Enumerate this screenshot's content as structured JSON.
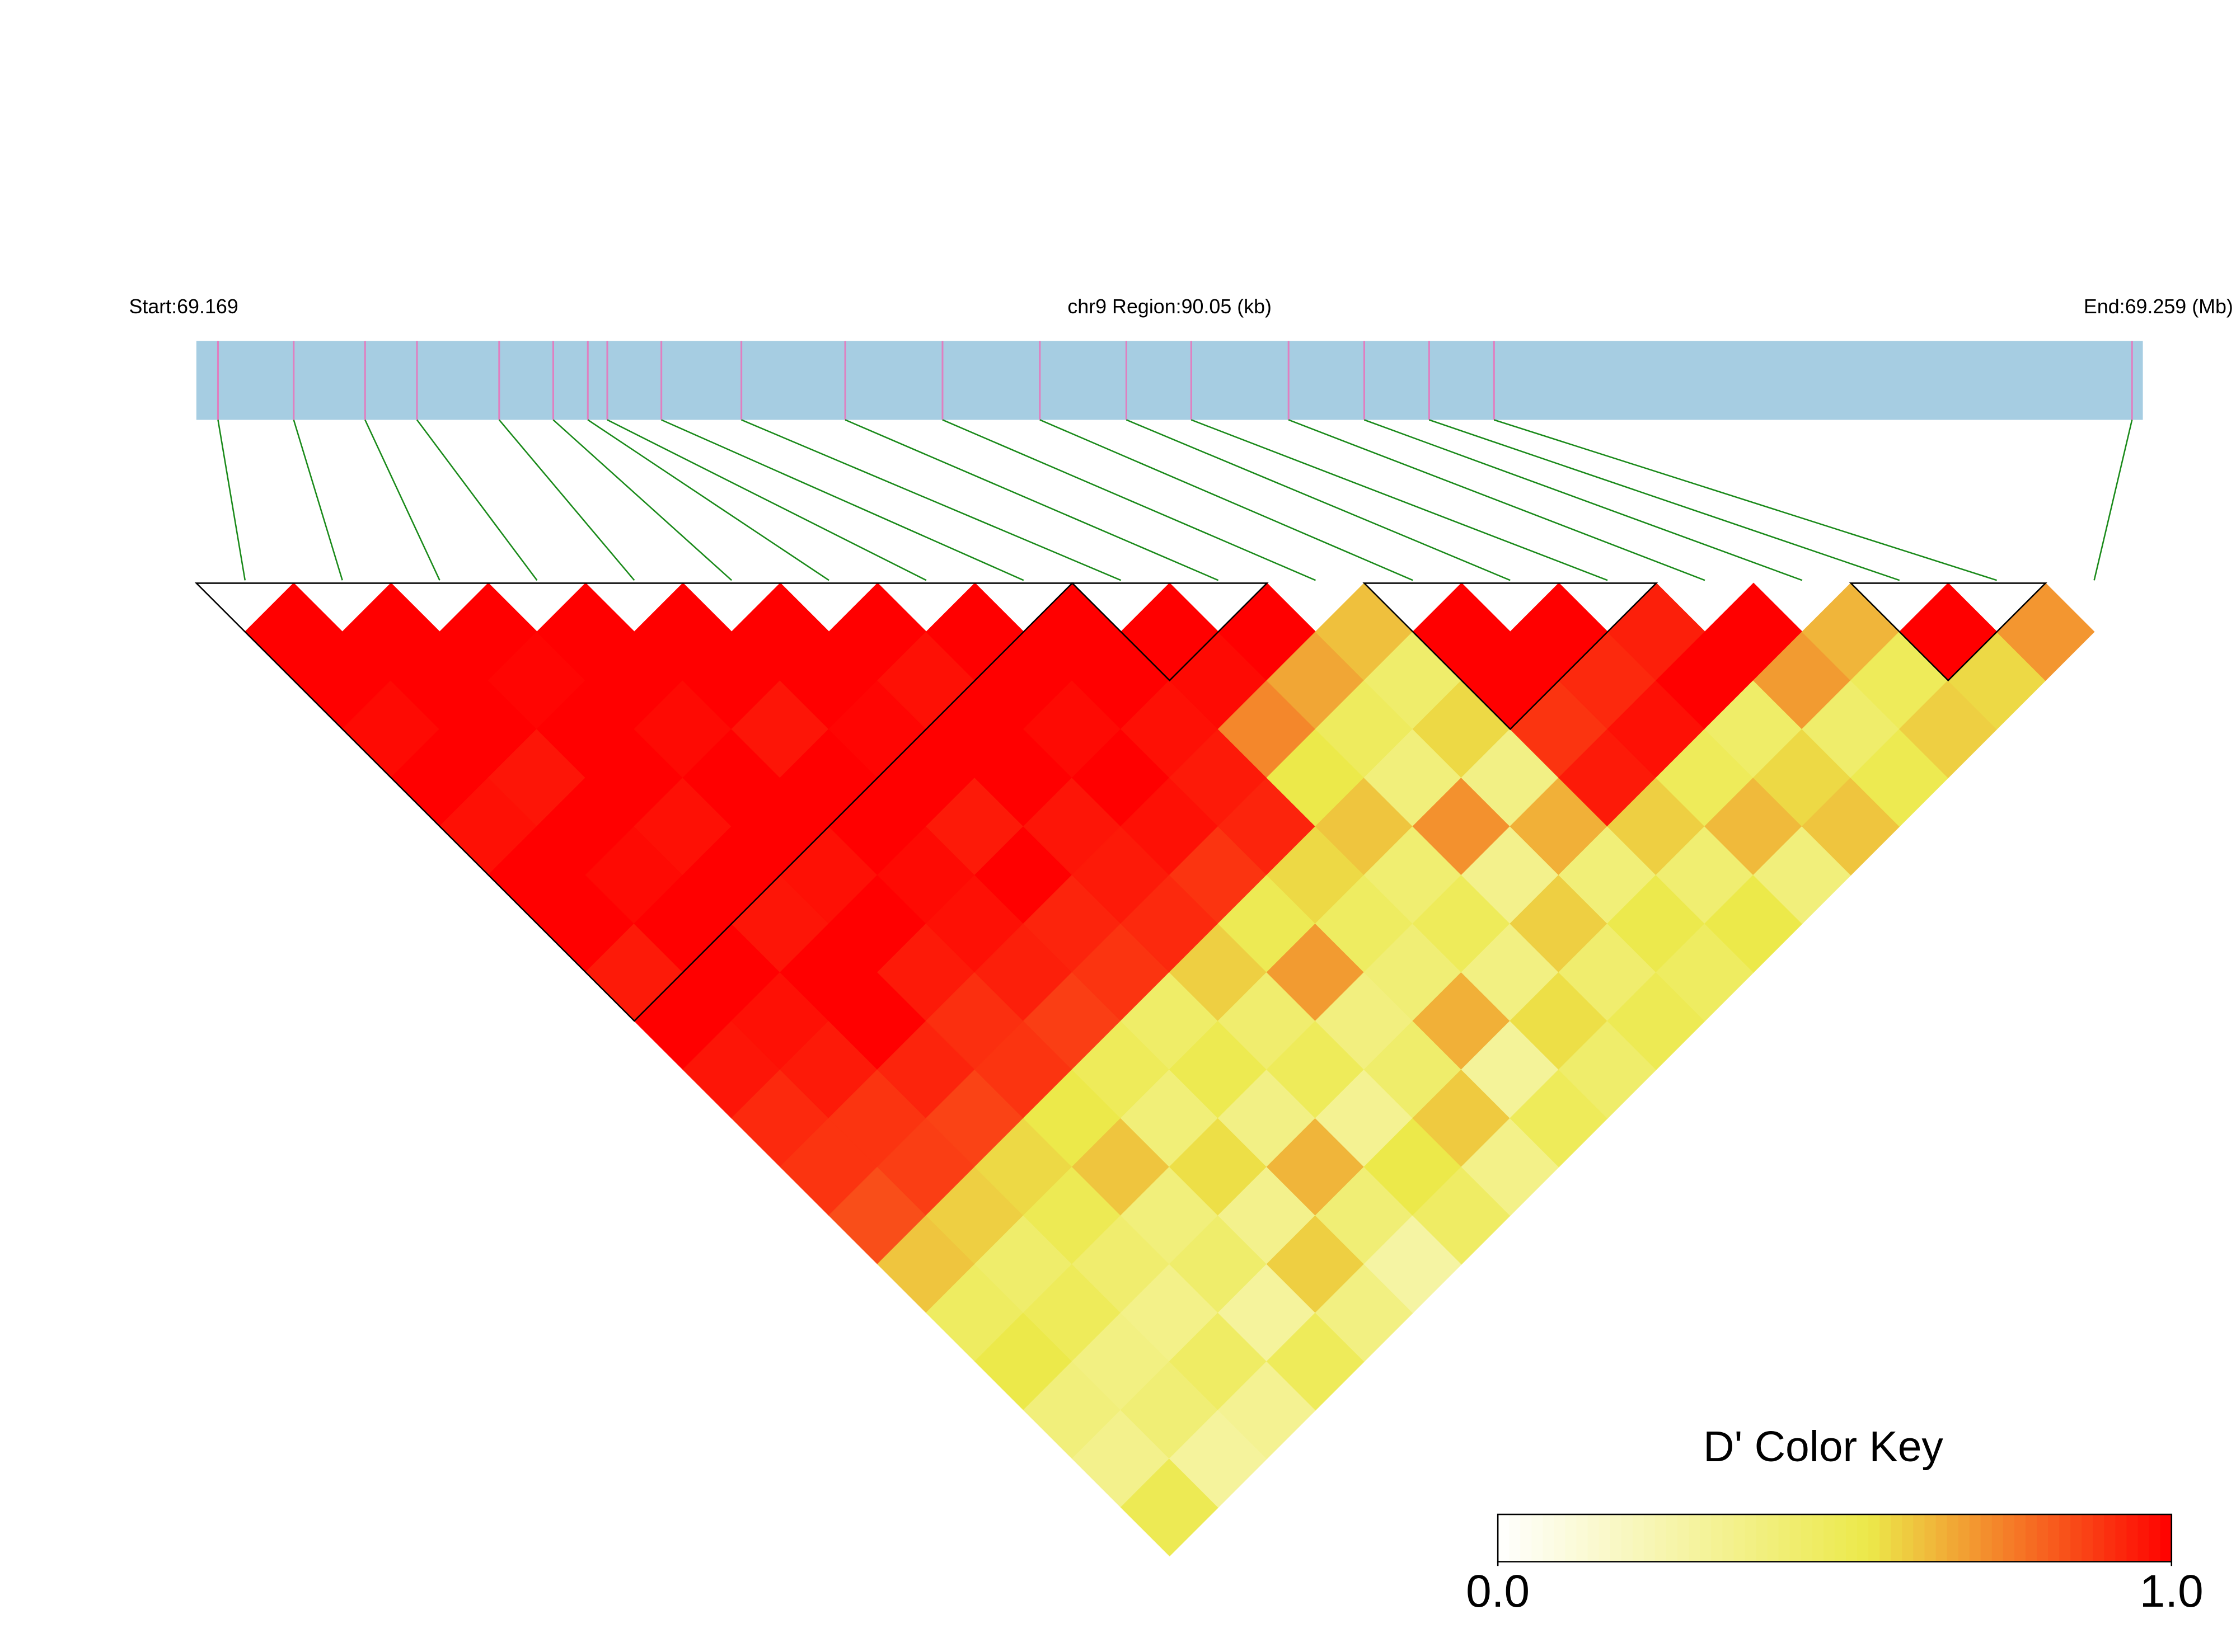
{
  "chart_data": {
    "type": "ld-heatmap",
    "start_label": "Start:69.169",
    "region_label": "chr9 Region:90.05 (kb)",
    "end_label": "End:69.259 (Mb)",
    "xlim": [
      69.169,
      69.259
    ],
    "snp_positions": [
      69.17,
      69.1735,
      69.1768,
      69.1792,
      69.183,
      69.1855,
      69.1871,
      69.188,
      69.1905,
      69.1942,
      69.199,
      69.2035,
      69.208,
      69.212,
      69.215,
      69.2195,
      69.223,
      69.226,
      69.229,
      69.2585
    ],
    "ld": [
      [
        1,
        1,
        0.98,
        1,
        0.97,
        1,
        1,
        0.95,
        1,
        0.96,
        0.92,
        0.9,
        0.85,
        0.62,
        0.48,
        0.55,
        0.4,
        0.35,
        0.52
      ],
      [
        1,
        1,
        1,
        0.96,
        1,
        0.98,
        1,
        1,
        0.97,
        0.95,
        0.9,
        0.88,
        0.6,
        0.45,
        0.5,
        0.38,
        0.42,
        0.3
      ],
      [
        1,
        0.99,
        1,
        1,
        0.97,
        1,
        0.96,
        1,
        1,
        0.93,
        0.87,
        0.58,
        0.52,
        0.44,
        0.36,
        0.47,
        0.33
      ],
      [
        1,
        1,
        0.98,
        1,
        1,
        0.97,
        1,
        0.95,
        0.91,
        0.9,
        0.55,
        0.62,
        0.4,
        0.45,
        0.3,
        0.5
      ],
      [
        1,
        1,
        0.96,
        1,
        1,
        0.98,
        0.97,
        0.94,
        0.88,
        0.5,
        0.41,
        0.57,
        0.35,
        0.6,
        0.38
      ],
      [
        1,
        1,
        0.99,
        1,
        0.95,
        1,
        0.93,
        0.9,
        0.46,
        0.53,
        0.37,
        0.65,
        0.42,
        0.28
      ],
      [
        1,
        0.97,
        1,
        1,
        0.96,
        0.95,
        0.92,
        0.6,
        0.44,
        0.5,
        0.33,
        0.55,
        0.47
      ],
      [
        1,
        1,
        0.98,
        1,
        0.97,
        0.9,
        0.52,
        0.7,
        0.39,
        0.45,
        0.61,
        0.36
      ],
      [
        1,
        1,
        0.97,
        0.95,
        0.93,
        0.58,
        0.48,
        0.42,
        0.66,
        0.31,
        0.5
      ],
      [
        1,
        0.98,
        0.74,
        0.55,
        0.62,
        0.43,
        0.5,
        0.38,
        0.57,
        0.45
      ],
      [
        1,
        0.68,
        0.49,
        0.4,
        0.72,
        0.35,
        0.6,
        0.44,
        0.52
      ],
      [
        0.63,
        0.45,
        0.58,
        0.37,
        0.66,
        0.41,
        0.54,
        0.48
      ],
      [
        1,
        1,
        0.9,
        0.95,
        0.6,
        0.43,
        0.55
      ],
      [
        1,
        0.92,
        0.97,
        0.5,
        0.64,
        0.4
      ],
      [
        0.94,
        1,
        0.46,
        0.58,
        0.62
      ],
      [
        1,
        0.7,
        0.45,
        0.53
      ],
      [
        0.65,
        0.5,
        0.6
      ],
      [
        1,
        0.58
      ],
      [
        0.71
      ]
    ],
    "blocks": [
      [
        0,
        8
      ],
      [
        9,
        10
      ],
      [
        12,
        14
      ],
      [
        17,
        18
      ]
    ],
    "colors": [
      "#ffffff",
      "#ece94a",
      "#ff0000"
    ],
    "color_stops": [
      0,
      0.55,
      1
    ],
    "legend_title": "D' Color Key",
    "clim": [
      0,
      1
    ],
    "legend_ticks": [
      {
        "value": 0,
        "label": "0.0"
      },
      {
        "value": 1,
        "label": "1.0"
      }
    ],
    "track_color": "#a6cde2",
    "snp_color": "#e07fc0",
    "link_color": "#1a8a1a"
  }
}
